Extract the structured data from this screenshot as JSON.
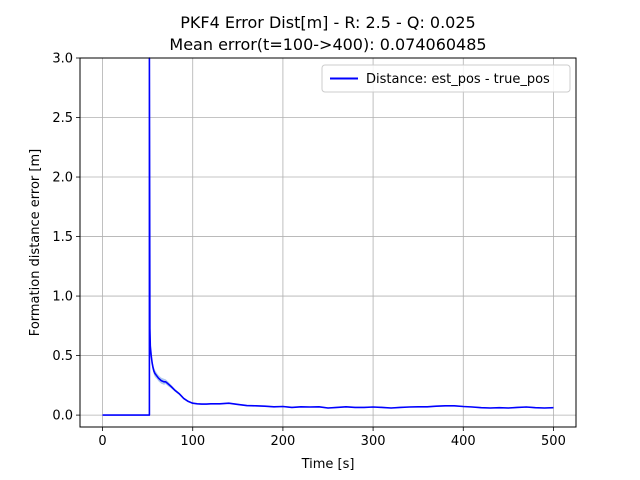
{
  "chart_data": {
    "type": "line",
    "title_line1": "PKF4 Error Dist[m] - R: 2.5 - Q: 0.025",
    "title_line2": "Mean error(t=100->400): 0.074060485",
    "xlabel": "Time [s]",
    "ylabel": "Formation distance error [m]",
    "xlim": [
      -25,
      525
    ],
    "ylim": [
      -0.1,
      3.0
    ],
    "xticks": [
      0,
      100,
      200,
      300,
      400,
      500
    ],
    "xtick_labels": [
      "0",
      "100",
      "200",
      "300",
      "400",
      "500"
    ],
    "yticks": [
      0.0,
      0.5,
      1.0,
      1.5,
      2.0,
      2.5,
      3.0
    ],
    "ytick_labels": [
      "0.0",
      "0.5",
      "1.0",
      "1.5",
      "2.0",
      "2.5",
      "3.0"
    ],
    "grid": true,
    "legend_position": "upper right",
    "series": [
      {
        "name": "Distance: est_pos - true_pos",
        "color": "#0000ff",
        "band_color": "#6f9ce0",
        "x": [
          0,
          52,
          52,
          52.5,
          53,
          54,
          55,
          56,
          57,
          58,
          60,
          62,
          65,
          68,
          70,
          73,
          76,
          80,
          85,
          90,
          95,
          100,
          105,
          110,
          115,
          120,
          130,
          140,
          150,
          160,
          170,
          180,
          190,
          200,
          210,
          220,
          230,
          240,
          250,
          260,
          270,
          280,
          290,
          300,
          310,
          320,
          330,
          340,
          350,
          360,
          370,
          380,
          390,
          400,
          410,
          420,
          430,
          440,
          450,
          460,
          470,
          480,
          490,
          500
        ],
        "y": [
          0.0,
          0.0,
          3.0,
          0.73,
          0.58,
          0.5,
          0.44,
          0.4,
          0.37,
          0.35,
          0.33,
          0.31,
          0.29,
          0.28,
          0.28,
          0.26,
          0.24,
          0.21,
          0.18,
          0.14,
          0.115,
          0.1,
          0.095,
          0.092,
          0.092,
          0.095,
          0.095,
          0.1,
          0.09,
          0.08,
          0.078,
          0.075,
          0.07,
          0.072,
          0.065,
          0.07,
          0.068,
          0.07,
          0.06,
          0.065,
          0.07,
          0.065,
          0.065,
          0.068,
          0.065,
          0.06,
          0.065,
          0.068,
          0.07,
          0.07,
          0.075,
          0.078,
          0.078,
          0.072,
          0.068,
          0.062,
          0.06,
          0.062,
          0.06,
          0.065,
          0.068,
          0.062,
          0.06,
          0.062
        ],
        "band_halfwidth": [
          0,
          0,
          0,
          0.02,
          0.03,
          0.03,
          0.03,
          0.03,
          0.03,
          0.03,
          0.025,
          0.025,
          0.025,
          0.025,
          0.02,
          0.02,
          0.015,
          0.012,
          0.01,
          0.008,
          0.006,
          0.005,
          0.005,
          0.005,
          0.005,
          0.005,
          0.005,
          0.005,
          0.005,
          0.005,
          0.005,
          0.005,
          0.005,
          0.005,
          0.005,
          0.005,
          0.005,
          0.005,
          0.005,
          0.005,
          0.005,
          0.005,
          0.005,
          0.005,
          0.005,
          0.005,
          0.005,
          0.005,
          0.005,
          0.005,
          0.005,
          0.005,
          0.005,
          0.005,
          0.005,
          0.005,
          0.005,
          0.005,
          0.005,
          0.005,
          0.005,
          0.005,
          0.005,
          0.005
        ]
      }
    ]
  }
}
